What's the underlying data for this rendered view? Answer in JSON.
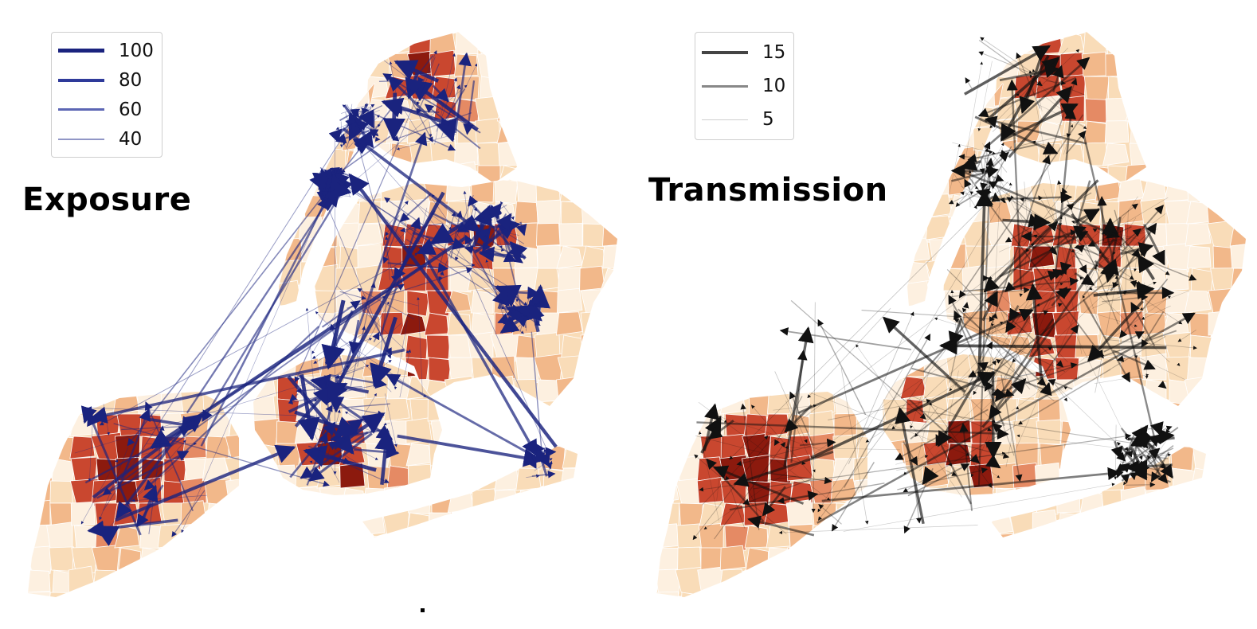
{
  "panels": [
    {
      "id": "exposure",
      "title": "Exposure",
      "arrow_color": "#1a237e",
      "legend": [
        {
          "label": "100",
          "value": 100
        },
        {
          "label": "80",
          "value": 80
        },
        {
          "label": "60",
          "value": 60
        },
        {
          "label": "40",
          "value": 40
        }
      ]
    },
    {
      "id": "transmission",
      "title": "Transmission",
      "arrow_color": "#111111",
      "legend": [
        {
          "label": "15",
          "value": 15
        },
        {
          "label": "10",
          "value": 10
        },
        {
          "label": "5",
          "value": 5
        }
      ]
    }
  ],
  "choropleth_scale": [
    "#fdf0e0",
    "#f9dcb8",
    "#f2b88a",
    "#e58a64",
    "#c9472f",
    "#8c1a0e"
  ]
}
